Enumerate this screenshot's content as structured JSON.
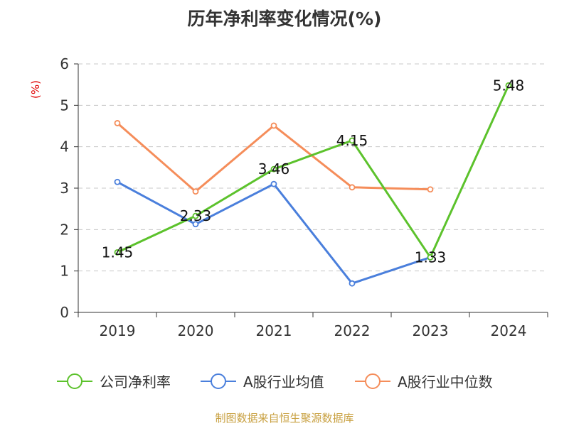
{
  "chart_data": {
    "type": "line",
    "title": "历年净利率变化情况(%)",
    "ylabel": "(%)",
    "xlabel": "",
    "categories": [
      "2019",
      "2020",
      "2021",
      "2022",
      "2023",
      "2024"
    ],
    "ylim": [
      0,
      6
    ],
    "yticks": [
      "0",
      "1",
      "2",
      "3",
      "4",
      "5",
      "6"
    ],
    "grid": true,
    "legend_position": "bottom",
    "series": [
      {
        "name": "公司净利率",
        "color": "#5cc22c",
        "values": [
          1.45,
          2.33,
          3.46,
          4.15,
          1.33,
          5.48
        ],
        "labels": [
          "1.45",
          "2.33",
          "3.46",
          "4.15",
          "1.33",
          "5.48"
        ]
      },
      {
        "name": "A股行业均值",
        "color": "#4a7fdc",
        "values": [
          3.15,
          2.13,
          3.1,
          0.7,
          1.33,
          null
        ]
      },
      {
        "name": "A股行业中位数",
        "color": "#f58d5a",
        "values": [
          4.57,
          2.92,
          4.51,
          3.02,
          2.97,
          null
        ]
      }
    ]
  },
  "footer": {
    "source": "制图数据来自恒生聚源数据库"
  }
}
